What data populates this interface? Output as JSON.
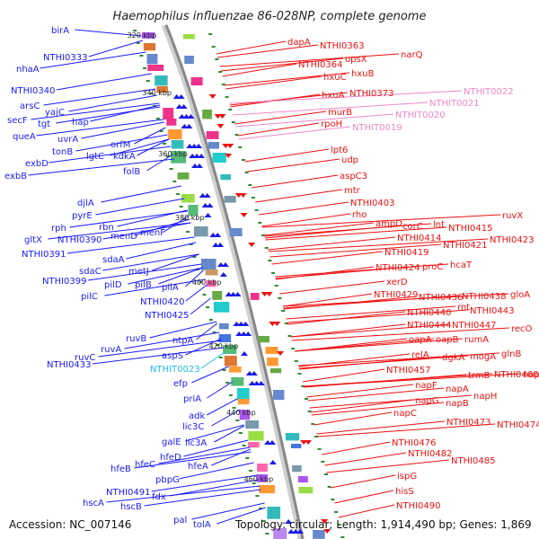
{
  "title": "Haemophilus influenzae 86-028NP, complete genome",
  "footer": {
    "accession": "Accession: NC_007146",
    "summary": "Topology: circular; Length: 1,914,490 bp; Genes: 1,869"
  },
  "colors": {
    "left_genes": "#1a1aff",
    "right_genes": "#ee1111",
    "trna_genes": "#ee88cc",
    "misc_gene": "#22bbee",
    "backbone": "#888888",
    "tick": "#2e8b2e"
  },
  "kbp_ticks": [
    "320 kbp",
    "340 kbp",
    "360 kbp",
    "380 kbp",
    "400 kbp",
    "420 kbp",
    "440 kbp",
    "460 kbp"
  ],
  "left_labels": [
    "birA",
    "NTHI0333",
    "nhaA",
    "NTHI0340",
    "arsC",
    "yajC",
    "secF",
    "tgt",
    "hap",
    "queA",
    "uvrA",
    "tonB",
    "lgtC",
    "orfM",
    "kdkA",
    "exbD",
    "exbB",
    "folB",
    "djlA",
    "pyrE",
    "rph",
    "rbn",
    "gltX",
    "NTHI0390",
    "menD",
    "menF",
    "NTHI0391",
    "sdaA",
    "sdaC",
    "metJ",
    "NTHI0399",
    "pilD",
    "pilB",
    "pilC",
    "pilA",
    "NTHI0420",
    "NTHI0425",
    "ruvB",
    "ntpA",
    "ruvA",
    "aspS",
    "ruvC",
    "NTHI0433",
    "NTHIT0023",
    "efp",
    "priA",
    "adk",
    "lic3C",
    "galE",
    "lic3A",
    "hfeD",
    "hfeC",
    "hfeA",
    "hfeB",
    "pbpG",
    "NTHI0491",
    "fdx",
    "hscA",
    "hscB",
    "pal",
    "tolA"
  ],
  "right_labels": [
    "dapA",
    "NTHI0363",
    "NTHI0364",
    "opsX",
    "hxuC",
    "hxuB",
    "narQ",
    "hxuA",
    "NTHI0373",
    "NTHIT0022",
    "NTHIT0021",
    "murB",
    "NTHIT0020",
    "rpoH",
    "NTHIT0019",
    "lpt6",
    "udp",
    "aspC3",
    "mtr",
    "NTHI0403",
    "rho",
    "ampD",
    "corC",
    "lnt",
    "ruvX",
    "NTHI0415",
    "NTHI0414",
    "NTHI0423",
    "NTHI0419",
    "NTHI0421",
    "NTHI0424",
    "proC",
    "hcaT",
    "xerD",
    "NTHI0429",
    "NTHI0436",
    "NTHI0438",
    "gloA",
    "NTHI0440",
    "rnt",
    "NTHI0443",
    "NTHI0444",
    "NTHI0447",
    "recO",
    "oapA",
    "oapB",
    "rumA",
    "relA",
    "dgkA",
    "mogA",
    "glnB",
    "NTHI0457",
    "trmB",
    "NTHI0460",
    "napD",
    "napF",
    "napA",
    "napG",
    "napB",
    "napH",
    "napC",
    "NTHI0473",
    "NTHI0474",
    "NTHI0476",
    "NTHI0482",
    "NTHI0485",
    "ispG",
    "hisS",
    "NTHI0490"
  ]
}
